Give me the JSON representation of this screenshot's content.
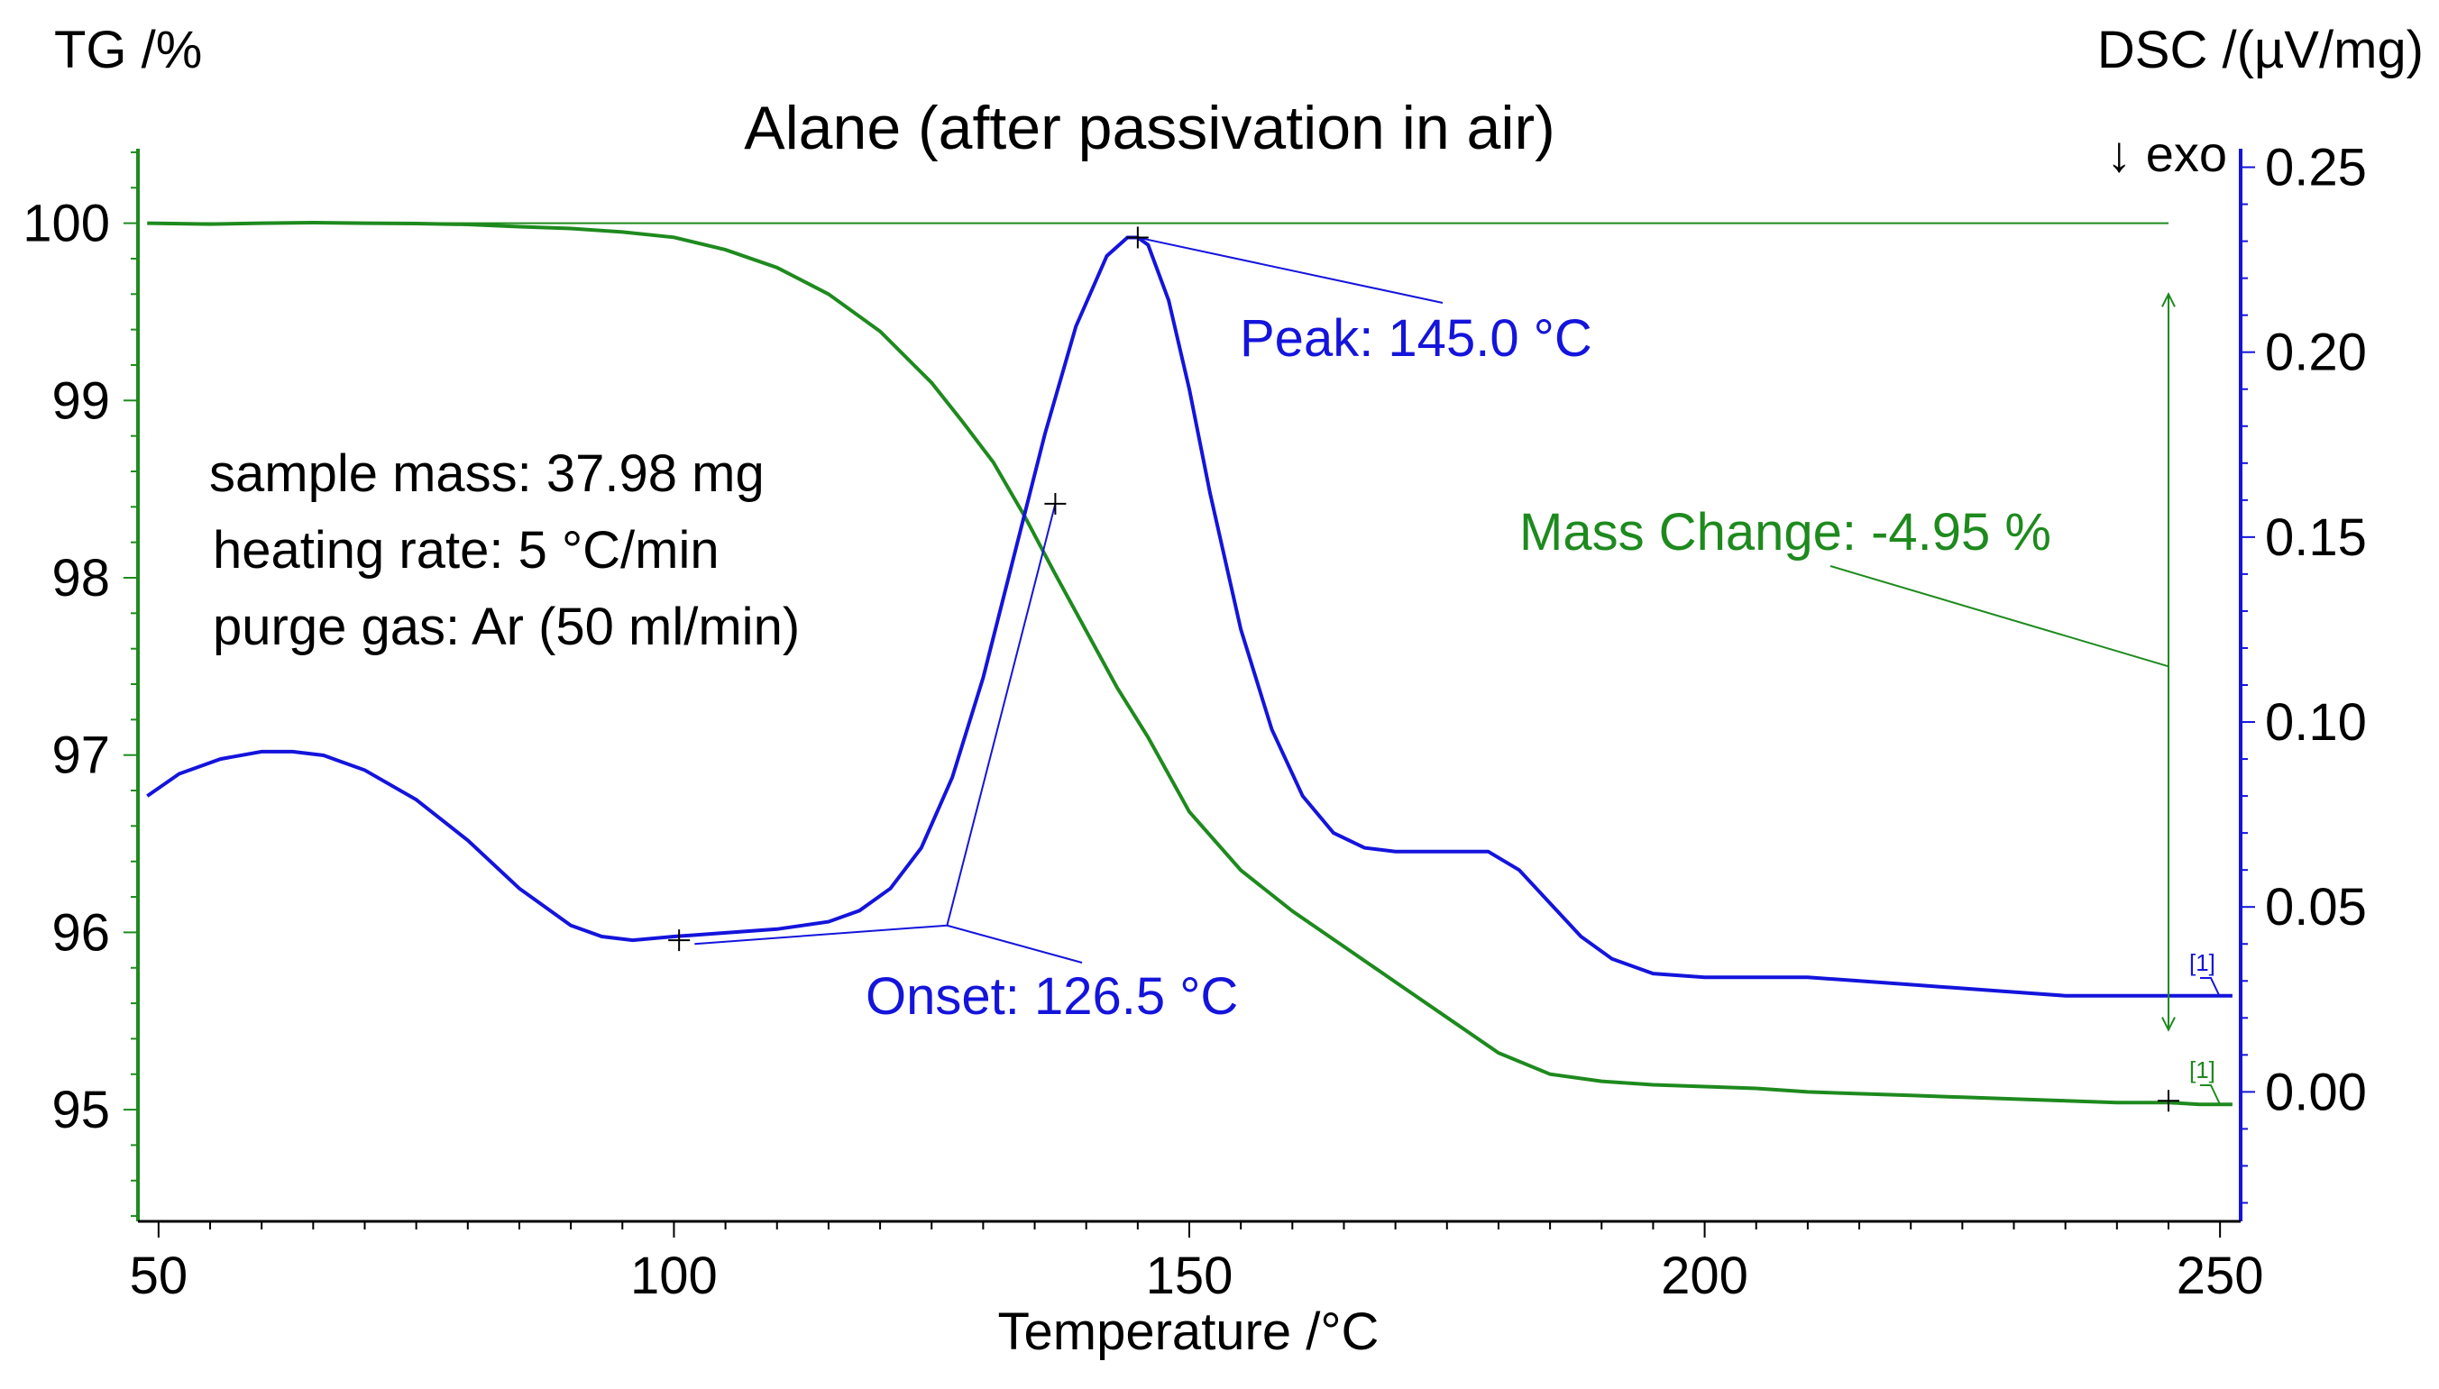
{
  "chart_data": {
    "type": "line",
    "title": "Alane (after passivation in air)",
    "xlabel": "Temperature /°C",
    "xlim": [
      48,
      252
    ],
    "xticks": [
      50,
      100,
      150,
      200,
      250
    ],
    "y_left": {
      "label": "TG /%",
      "lim": [
        94.37,
        100.42
      ],
      "ticks": [
        "95",
        "96",
        "97",
        "98",
        "99",
        "100"
      ]
    },
    "y_right": {
      "label": "DSC /(µV/mg)",
      "lim": [
        -0.035,
        0.255
      ],
      "ticks": [
        "0.00",
        "0.05",
        "0.10",
        "0.15",
        "0.20",
        "0.25"
      ],
      "exo_label": "↓  exo"
    },
    "colors": {
      "tg": "#1e8a1e",
      "dsc": "#1414dc",
      "axis_left": "#1e8a1e",
      "axis_right": "#1414dc",
      "text": "#000000"
    },
    "series": [
      {
        "name": "TG",
        "axis": "left",
        "x": [
          48.9,
          55,
          60,
          65,
          70,
          75,
          80,
          85,
          90,
          95,
          100,
          105,
          110,
          115,
          120,
          125,
          128,
          131,
          134,
          137,
          140,
          143,
          146,
          150,
          155,
          160,
          165,
          170,
          175,
          180,
          185,
          190,
          195,
          200,
          205,
          210,
          215,
          220,
          225,
          230,
          235,
          240,
          245,
          248,
          251.2
        ],
        "values": [
          100.0,
          99.995,
          100.0,
          100.003,
          100.0,
          99.998,
          99.993,
          99.98,
          99.97,
          99.95,
          99.92,
          99.85,
          99.75,
          99.6,
          99.39,
          99.1,
          98.88,
          98.65,
          98.35,
          98.02,
          97.7,
          97.38,
          97.1,
          96.68,
          96.35,
          96.12,
          95.92,
          95.72,
          95.52,
          95.32,
          95.2,
          95.16,
          95.14,
          95.13,
          95.12,
          95.1,
          95.09,
          95.08,
          95.07,
          95.06,
          95.05,
          95.04,
          95.04,
          95.03,
          95.03
        ]
      },
      {
        "name": "DSC",
        "axis": "right",
        "x": [
          48.9,
          52,
          56,
          60,
          63,
          66,
          70,
          75,
          80,
          85,
          90,
          93,
          96,
          100,
          105,
          110,
          115,
          118,
          121,
          124,
          127,
          130,
          133,
          136,
          139,
          142,
          144,
          145,
          146,
          148,
          150,
          152,
          155,
          158,
          161,
          164,
          167,
          170,
          173,
          176,
          179,
          182,
          185,
          188,
          191,
          195,
          200,
          205,
          210,
          215,
          220,
          225,
          230,
          235,
          240,
          245,
          248,
          251.2
        ],
        "values": [
          0.08,
          0.086,
          0.09,
          0.092,
          0.092,
          0.091,
          0.087,
          0.079,
          0.068,
          0.055,
          0.045,
          0.042,
          0.041,
          0.042,
          0.043,
          0.044,
          0.046,
          0.049,
          0.055,
          0.066,
          0.085,
          0.112,
          0.145,
          0.178,
          0.207,
          0.226,
          0.231,
          0.231,
          0.229,
          0.214,
          0.19,
          0.162,
          0.125,
          0.098,
          0.08,
          0.07,
          0.066,
          0.065,
          0.065,
          0.065,
          0.065,
          0.06,
          0.051,
          0.042,
          0.036,
          0.032,
          0.031,
          0.031,
          0.031,
          0.03,
          0.029,
          0.028,
          0.027,
          0.026,
          0.026,
          0.026,
          0.026,
          0.026
        ]
      }
    ],
    "annotations": {
      "info": [
        "sample mass: 37.98 mg",
        "heating rate: 5 °C/min",
        "purge gas: Ar (50 ml/min)"
      ],
      "peak": {
        "label": "Peak: 145.0 °C",
        "x": 145.0,
        "y": 0.231
      },
      "onset": {
        "label": "Onset: 126.5 °C",
        "x": 126.5,
        "y": 0.045
      },
      "mass_change": {
        "label": "Mass Change: -4.95 %",
        "x": 245,
        "y_top": 100.0,
        "y_bottom": 95.05
      },
      "curve_tags": {
        "dsc": "[1]",
        "tg": "[1]"
      }
    }
  }
}
